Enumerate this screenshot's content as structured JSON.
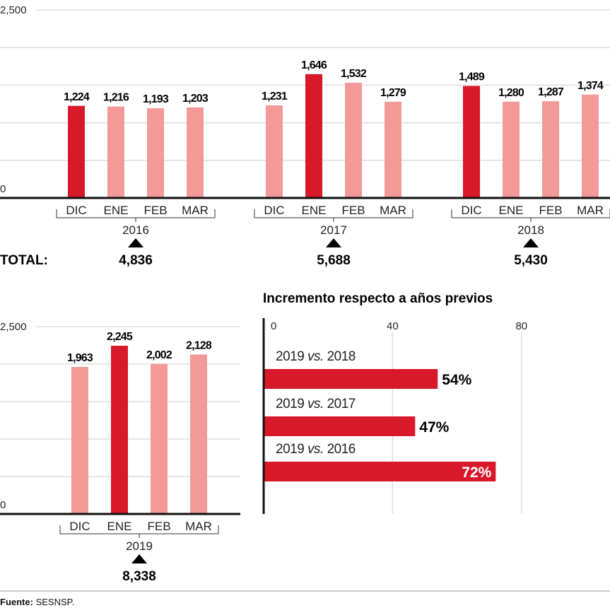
{
  "colors": {
    "highlight": "#d7192a",
    "normal": "#f39a98",
    "hbar": "#d7192a",
    "grid": "#dddddd",
    "axis": "#111111"
  },
  "chart_data": [
    {
      "type": "bar",
      "ylim": [
        0,
        2500
      ],
      "yticks": [
        "0",
        "2,500"
      ],
      "grid": true,
      "total_label": "TOTAL:",
      "groups": [
        {
          "year": "2016",
          "categories": [
            "DIC",
            "ENE",
            "FEB",
            "MAR"
          ],
          "values": [
            1224,
            1216,
            1193,
            1203
          ],
          "labels": [
            "1,224",
            "1,216",
            "1,193",
            "1,203"
          ],
          "total": "4,836"
        },
        {
          "year": "2017",
          "categories": [
            "DIC",
            "ENE",
            "FEB",
            "MAR"
          ],
          "values": [
            1231,
            1646,
            1532,
            1279
          ],
          "labels": [
            "1,231",
            "1,646",
            "1,532",
            "1,279"
          ],
          "total": "5,688"
        },
        {
          "year": "2018",
          "categories": [
            "DIC",
            "ENE",
            "FEB",
            "MAR"
          ],
          "values": [
            1489,
            1280,
            1287,
            1374
          ],
          "labels": [
            "1,489",
            "1,280",
            "1,287",
            "1,374"
          ],
          "total": "5,430"
        }
      ]
    },
    {
      "type": "bar",
      "ylim": [
        0,
        2500
      ],
      "yticks": [
        "0",
        "2,500"
      ],
      "grid": true,
      "groups": [
        {
          "year": "2019",
          "categories": [
            "DIC",
            "ENE",
            "FEB",
            "MAR"
          ],
          "values": [
            1963,
            2245,
            2002,
            2128
          ],
          "labels": [
            "1,963",
            "2,245",
            "2,002",
            "2,128"
          ],
          "total": "8,338"
        }
      ]
    },
    {
      "type": "bar",
      "orientation": "horizontal",
      "title": "Incremento respecto a años previos",
      "xlim": [
        0,
        80
      ],
      "xticks": [
        "0",
        "40",
        "80"
      ],
      "categories": [
        {
          "pre": "2019 ",
          "vs": "vs.",
          "post": " 2018"
        },
        {
          "pre": "2019 ",
          "vs": "vs.",
          "post": " 2017"
        },
        {
          "pre": "2019 ",
          "vs": "vs.",
          "post": " 2016"
        }
      ],
      "values": [
        54,
        47,
        72
      ],
      "labels": [
        "54%",
        "47%",
        "72%"
      ]
    }
  ],
  "source": {
    "label": "Fuente:",
    "text": " SESNSP."
  }
}
